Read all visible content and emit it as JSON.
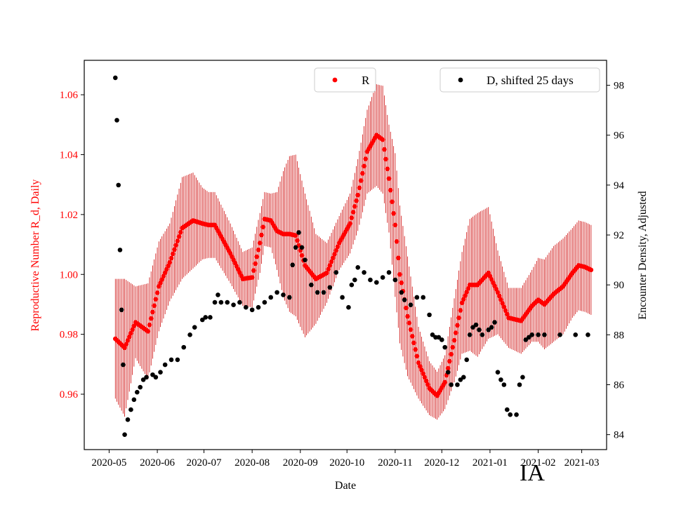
{
  "chart_data": {
    "type": "scatter",
    "title": "",
    "xlabel": "Date",
    "ylabel_left": "Reproductive Number R_d, Daily",
    "ylabel_right": "Encounter Density, Adjusted",
    "x_unit": "days since 2020-05-01",
    "x_tick_labels": [
      "2020-05",
      "2020-06",
      "2020-07",
      "2020-08",
      "2020-09",
      "2020-10",
      "2020-11",
      "2020-12",
      "2021-01",
      "2021-02",
      "2021-03"
    ],
    "x_tick_values": [
      0,
      31,
      61,
      92,
      123,
      153,
      184,
      214,
      245,
      276,
      304
    ],
    "xlim": [
      -16,
      320
    ],
    "ylim_left": [
      0.9415,
      1.0715
    ],
    "ylim_right": [
      83.4,
      99.0
    ],
    "y_ticks_left": [
      0.96,
      0.98,
      1.0,
      1.02,
      1.04,
      1.06
    ],
    "y_ticks_left_labels": [
      "0.96",
      "0.98",
      "1.00",
      "1.02",
      "1.04",
      "1.06"
    ],
    "y_ticks_right": [
      84,
      86,
      88,
      90,
      92,
      94,
      96,
      98
    ],
    "y_ticks_right_labels": [
      "84",
      "86",
      "88",
      "90",
      "92",
      "94",
      "96",
      "98"
    ],
    "colors": {
      "R": "#ff0000",
      "R_err": "#cc0000",
      "D": "#000000",
      "left_axis": "#ff0000",
      "right_axis": "#000000"
    },
    "series": [
      {
        "name": "R",
        "axis": "left",
        "color": "#ff0000",
        "x": [
          4,
          10,
          17,
          25,
          32,
          39,
          47,
          54,
          60,
          64,
          68,
          78,
          86,
          92,
          97,
          100,
          104,
          108,
          112,
          116,
          120,
          126,
          133,
          140,
          148,
          155,
          160,
          166,
          172,
          176,
          180,
          184,
          187,
          192,
          199,
          206,
          211,
          216,
          222,
          227,
          232,
          237,
          244,
          250,
          257,
          265,
          272,
          276,
          280,
          286,
          292,
          298,
          302,
          306,
          310
        ],
        "y": [
          0.9785,
          0.9755,
          0.984,
          0.981,
          0.996,
          1.004,
          1.0155,
          1.018,
          1.017,
          1.0165,
          1.0165,
          1.007,
          0.9985,
          0.999,
          1.0105,
          1.0185,
          1.018,
          1.0145,
          1.0135,
          1.0135,
          1.013,
          1.003,
          0.9985,
          1.0005,
          1.0105,
          1.017,
          1.0265,
          1.041,
          1.0465,
          1.045,
          1.032,
          1.0165,
          1.0,
          0.986,
          0.9705,
          0.962,
          0.9595,
          0.964,
          0.978,
          0.9905,
          0.9965,
          0.9965,
          1.0005,
          0.994,
          0.9855,
          0.9845,
          0.9895,
          0.9915,
          0.99,
          0.9935,
          0.996,
          1.0005,
          1.003,
          1.0025,
          1.0015
        ],
        "err": [
          0.02,
          0.023,
          0.012,
          0.016,
          0.015,
          0.013,
          0.017,
          0.016,
          0.012,
          0.011,
          0.011,
          0.01,
          0.009,
          0.01,
          0.01,
          0.009,
          0.009,
          0.013,
          0.021,
          0.026,
          0.027,
          0.024,
          0.015,
          0.01,
          0.009,
          0.01,
          0.012,
          0.014,
          0.017,
          0.018,
          0.018,
          0.024,
          0.023,
          0.02,
          0.012,
          0.009,
          0.008,
          0.009,
          0.014,
          0.017,
          0.022,
          0.024,
          0.022,
          0.014,
          0.01,
          0.011,
          0.012,
          0.014,
          0.015,
          0.016,
          0.016,
          0.015,
          0.015,
          0.015,
          0.015
        ]
      },
      {
        "name": "D, shifted 25 days",
        "axis": "right",
        "color": "#000000",
        "x": [
          4,
          5,
          6,
          7,
          8,
          9,
          10,
          12,
          14,
          16,
          18,
          20,
          22,
          24,
          28,
          30,
          33,
          36,
          40,
          44,
          48,
          52,
          55,
          60,
          62,
          65,
          68,
          70,
          72,
          76,
          80,
          84,
          88,
          92,
          96,
          100,
          104,
          108,
          112,
          116,
          118,
          120,
          122,
          124,
          126,
          130,
          134,
          138,
          142,
          146,
          150,
          154,
          156,
          158,
          160,
          164,
          168,
          172,
          176,
          180,
          184,
          188,
          190,
          194,
          198,
          202,
          206,
          208,
          210,
          212,
          214,
          216,
          218,
          220,
          224,
          226,
          228,
          230,
          232,
          234,
          236,
          238,
          240,
          244,
          246,
          248,
          250,
          252,
          254,
          256,
          258,
          262,
          264,
          266,
          268,
          270,
          272,
          276,
          280,
          290,
          300,
          308
        ],
        "y": [
          98.3,
          96.6,
          94.0,
          91.4,
          89.0,
          86.8,
          84.0,
          84.6,
          85.0,
          85.4,
          85.7,
          85.9,
          86.2,
          86.3,
          86.4,
          86.3,
          86.5,
          86.8,
          87.0,
          87.0,
          87.5,
          88.0,
          88.3,
          88.6,
          88.7,
          88.7,
          89.3,
          89.6,
          89.3,
          89.3,
          89.2,
          89.3,
          89.1,
          89.0,
          89.1,
          89.3,
          89.5,
          89.7,
          89.6,
          89.5,
          90.8,
          91.5,
          92.1,
          91.5,
          91.0,
          90.0,
          89.7,
          89.7,
          89.9,
          90.5,
          89.5,
          89.1,
          90.0,
          90.2,
          90.7,
          90.5,
          90.2,
          90.1,
          90.3,
          90.5,
          90.2,
          89.7,
          89.4,
          89.2,
          89.5,
          89.5,
          88.8,
          88.0,
          87.9,
          87.9,
          87.8,
          87.5,
          86.5,
          86.0,
          86.0,
          86.2,
          86.3,
          87.0,
          88.0,
          88.3,
          88.4,
          88.2,
          88.0,
          88.2,
          88.3,
          88.5,
          86.5,
          86.2,
          86.0,
          85.0,
          84.8,
          84.8,
          86.0,
          86.3,
          87.8,
          87.9,
          88.0,
          88.0,
          88.0,
          88.0,
          88.0,
          88.0
        ]
      }
    ],
    "legend": [
      {
        "label": "R",
        "color": "#ff0000",
        "position": "top-center"
      },
      {
        "label": "D, shifted 25 days",
        "color": "#000000",
        "position": "top-right"
      }
    ],
    "annotation": "IA"
  }
}
